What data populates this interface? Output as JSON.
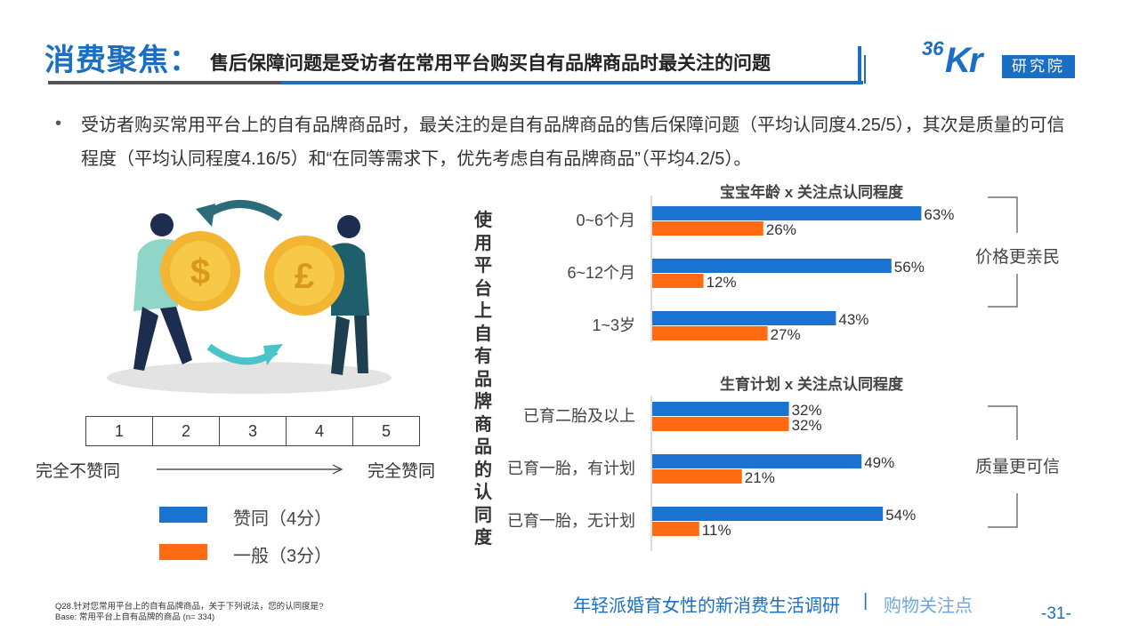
{
  "header": {
    "main_title": "消费聚焦：",
    "sub_title": "售后保障问题是受访者在常用平台购买自有品牌商品时最关注的问题"
  },
  "logo": {
    "number": "36",
    "letters": "Kr",
    "box_text": "研究院"
  },
  "bullet": {
    "dot": "•",
    "text": "受访者购买常用平台上的自有品牌商品时，最关注的是自有品牌商品的售后保障问题（平均认同度4.25/5），其次是质量的可信程度（平均认同程度4.16/5）和“在同等需求下，优先考虑自有品牌商品”（平均4.2/5）。"
  },
  "scale": {
    "cells": [
      "1",
      "2",
      "3",
      "4",
      "5"
    ],
    "left_label": "完全不赞同",
    "right_label": "完全赞同"
  },
  "legend": [
    {
      "label": "赞同（4分）",
      "color": "#1a73d0"
    },
    {
      "label": "一般（3分）",
      "color": "#ff6a13"
    }
  ],
  "vertical_label": "使用平台上自有品牌商品的认同度",
  "notes": {
    "top": "价格更亲民",
    "bottom": "质量更可信"
  },
  "colors": {
    "agree": "#1a73d0",
    "neutral": "#ff6a13",
    "brand": "#1a6fc4"
  },
  "chart_data": [
    {
      "type": "bar",
      "orientation": "horizontal",
      "title": "宝宝年龄 x 关注点认同程度",
      "categories": [
        "0~6个月",
        "6~12个月",
        "1~3岁"
      ],
      "series": [
        {
          "name": "赞同（4分）",
          "values": [
            63,
            56,
            43
          ],
          "labels": [
            "63%",
            "56%",
            "43%"
          ]
        },
        {
          "name": "一般（3分）",
          "values": [
            26,
            12,
            27
          ],
          "labels": [
            "26%",
            "12%",
            "27%"
          ]
        }
      ],
      "unit": "%"
    },
    {
      "type": "bar",
      "orientation": "horizontal",
      "title": "生育计划 x 关注点认同程度",
      "categories": [
        "已育二胎及以上",
        "已育一胎，有计划",
        "已育一胎，无计划"
      ],
      "series": [
        {
          "name": "赞同（4分）",
          "values": [
            32,
            49,
            54
          ],
          "labels": [
            "32%",
            "49%",
            "54%"
          ]
        },
        {
          "name": "一般（3分）",
          "values": [
            32,
            21,
            11
          ],
          "labels": [
            "32%",
            "21%",
            "11%"
          ]
        }
      ],
      "unit": "%"
    }
  ],
  "footer": {
    "question": "Q28.针对您常用平台上的自有品牌商品，关于下列说法，您的认同度是?",
    "base": "Base: 常用平台上自有品牌的商品 (n= 334)",
    "report_title": "年轻派婚育女性的新消费生活调研",
    "separator": "|",
    "section": "购物关注点",
    "page": "-31-"
  }
}
